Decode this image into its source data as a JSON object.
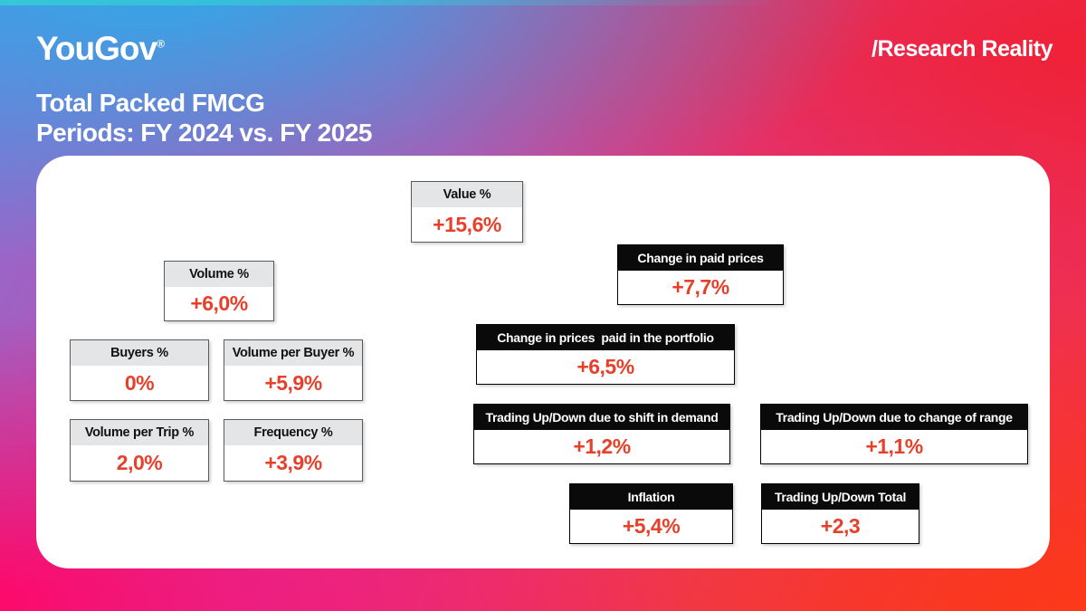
{
  "header": {
    "logo_text": "YouGov",
    "registered_mark": "®",
    "tagline": "/Research Reality",
    "title_line1": "Total Packed FMCG",
    "title_line2": "Periods: FY 2024 vs. FY 2025"
  },
  "colors": {
    "value_text": "#e7402a",
    "gray_header_bg": "#e4e5e7",
    "black_header_bg": "#0a0a0a",
    "panel_bg": "#ffffff",
    "bg_top_left": "#2babe9",
    "bg_top_right": "#ef2135",
    "bg_bottom_left": "#ff0769",
    "bg_bottom_right": "#fc3a16"
  },
  "metrics": [
    {
      "label": "Value %",
      "value": "+15,6%",
      "header_style": "gray"
    },
    {
      "label": "Volume %",
      "value": "+6,0%",
      "header_style": "gray"
    },
    {
      "label": "Buyers %",
      "value": "0%",
      "header_style": "gray"
    },
    {
      "label": "Volume per Buyer %",
      "value": "+5,9%",
      "header_style": "gray"
    },
    {
      "label": "Volume per Trip %",
      "value": "2,0%",
      "header_style": "gray"
    },
    {
      "label": "Frequency %",
      "value": "+3,9%",
      "header_style": "gray"
    },
    {
      "label": "Change in paid prices",
      "value": "+7,7%",
      "header_style": "black"
    },
    {
      "label": "Change in prices  paid in the portfolio",
      "value": "+6,5%",
      "header_style": "black"
    },
    {
      "label": "Trading Up/Down due to shift in demand",
      "value": "+1,2%",
      "header_style": "black"
    },
    {
      "label": "Trading Up/Down due to change of range",
      "value": "+1,1%",
      "header_style": "black"
    },
    {
      "label": "Inflation",
      "value": "+5,4%",
      "header_style": "black"
    },
    {
      "label": "Trading Up/Down Total",
      "value": "+2,3",
      "header_style": "black"
    }
  ]
}
